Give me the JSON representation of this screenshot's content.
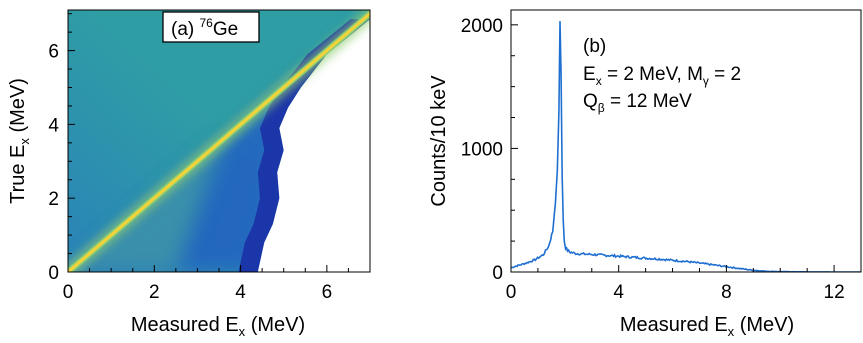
{
  "chart_data": [
    {
      "panel": "(a)",
      "type": "heatmap",
      "title": "(a) ⁷⁶Ge",
      "title_prefix": "(a) ",
      "title_sup": "76",
      "title_main": "Ge",
      "xlabel": "Measured E",
      "xlabel_sub": "x",
      "xlabel_unit": " (MeV)",
      "ylabel": "True  E",
      "ylabel_sub": "x",
      "ylabel_unit": " (MeV)",
      "xlim": [
        0,
        7
      ],
      "ylim": [
        0,
        7.1
      ],
      "xticks": [
        0,
        2,
        4,
        6
      ],
      "yticks": [
        0,
        2,
        4,
        6
      ],
      "tick_labels_x": [
        "0",
        "2",
        "4",
        "6"
      ],
      "tick_labels_y": [
        "0",
        "2",
        "4",
        "6"
      ],
      "colors": {
        "background_high": "#2f9ea4",
        "background_mid": "#2a83b8",
        "background_low": "#2160c2",
        "edge": "#1b36a8",
        "band_outer": "#8fce72",
        "band_core": "#f4d339",
        "corner_low": "#4db39a"
      },
      "diagonal": {
        "from": [
          0,
          0
        ],
        "to": [
          7,
          7
        ]
      },
      "cutoff_boundary": [
        [
          7.0,
          6.85
        ],
        [
          6.0,
          5.9
        ],
        [
          5.4,
          5.0
        ],
        [
          5.1,
          4.45
        ],
        [
          4.9,
          3.9
        ],
        [
          5.0,
          3.3
        ],
        [
          4.85,
          2.7
        ],
        [
          4.9,
          2.0
        ],
        [
          4.75,
          1.3
        ],
        [
          4.55,
          0.8
        ],
        [
          4.4,
          0.0
        ]
      ]
    },
    {
      "panel": "(b)",
      "type": "line",
      "title": "(b)",
      "annotation_1": "E",
      "annotation_1_sub": "x",
      "annotation_1_mid": " = 2 MeV, M",
      "annotation_1_sub2": "γ",
      "annotation_1_end": " = 2",
      "annotation_2": "Q",
      "annotation_2_sub": "β",
      "annotation_2_end": " = 12 MeV",
      "xlabel": "Measured E",
      "xlabel_sub": "x",
      "xlabel_unit": " (MeV)",
      "ylabel": "Counts/10 keV",
      "xlim": [
        0,
        13
      ],
      "ylim": [
        0,
        2120
      ],
      "xticks": [
        0,
        4,
        8,
        12
      ],
      "yticks": [
        0,
        1000,
        2000
      ],
      "tick_labels_x": [
        "0",
        "4",
        "8",
        "12"
      ],
      "tick_labels_y": [
        "0",
        "1000",
        "2000"
      ],
      "line_color": "#1f6fd1",
      "series": [
        {
          "x": [
            0.0,
            0.3,
            0.6,
            0.9,
            1.2,
            1.4,
            1.55,
            1.65,
            1.72,
            1.78,
            1.82,
            1.86,
            1.9,
            1.94,
            1.98,
            2.03,
            2.1,
            2.2,
            2.4,
            2.7,
            3.0,
            3.5,
            4.0,
            4.5,
            5.0,
            5.5,
            6.0,
            6.5,
            7.0,
            7.5,
            8.0,
            8.5,
            9.0,
            9.5,
            10.0,
            11.0,
            12.0,
            13.0
          ],
          "y": [
            35,
            55,
            75,
            100,
            140,
            210,
            330,
            560,
            820,
            1300,
            2030,
            1600,
            780,
            420,
            250,
            195,
            175,
            160,
            150,
            145,
            142,
            135,
            128,
            120,
            112,
            105,
            95,
            85,
            72,
            58,
            43,
            28,
            14,
            6,
            3,
            1,
            0,
            0
          ]
        }
      ]
    }
  ]
}
